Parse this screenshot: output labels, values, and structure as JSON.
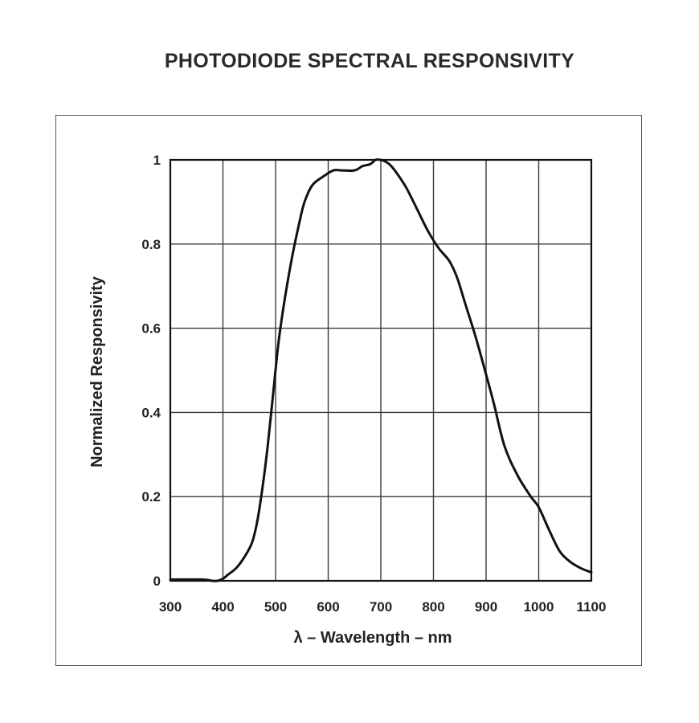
{
  "chart_data": {
    "type": "line",
    "title": "PHOTODIODE SPECTRAL RESPONSIVITY",
    "xlabel": "λ – Wavelength – nm",
    "ylabel": "Normalized Responsivity",
    "xlim": [
      300,
      1100
    ],
    "ylim": [
      0,
      1
    ],
    "grid": true,
    "x_ticks": [
      300,
      400,
      500,
      600,
      700,
      800,
      900,
      1000,
      1100
    ],
    "y_ticks": [
      0,
      0.2,
      0.4,
      0.6,
      0.8,
      1
    ],
    "x_tick_labels": [
      "300",
      "400",
      "500",
      "600",
      "700",
      "800",
      "900",
      "1000",
      "1100"
    ],
    "y_tick_labels": [
      "0",
      "0.2",
      "0.4",
      "0.6",
      "0.8",
      "1"
    ],
    "series": [
      {
        "name": "Normalized Responsivity",
        "color": "#111111",
        "x": [
          300,
          360,
          380,
          390,
          400,
          410,
          425,
          440,
          455,
          465,
          475,
          485,
          495,
          505,
          515,
          530,
          545,
          555,
          570,
          590,
          610,
          625,
          650,
          665,
          680,
          690,
          700,
          710,
          720,
          735,
          750,
          770,
          790,
          810,
          830,
          845,
          860,
          880,
          900,
          915,
          935,
          960,
          985,
          1000,
          1020,
          1040,
          1060,
          1080,
          1100
        ],
        "y": [
          0.003,
          0.003,
          0.0,
          0.0,
          0.005,
          0.015,
          0.03,
          0.055,
          0.09,
          0.14,
          0.22,
          0.32,
          0.44,
          0.56,
          0.65,
          0.76,
          0.85,
          0.9,
          0.94,
          0.96,
          0.975,
          0.975,
          0.975,
          0.985,
          0.99,
          1.0,
          1.0,
          0.995,
          0.985,
          0.96,
          0.93,
          0.88,
          0.83,
          0.79,
          0.76,
          0.72,
          0.66,
          0.58,
          0.49,
          0.42,
          0.32,
          0.25,
          0.2,
          0.175,
          0.12,
          0.07,
          0.045,
          0.03,
          0.02
        ]
      }
    ]
  }
}
